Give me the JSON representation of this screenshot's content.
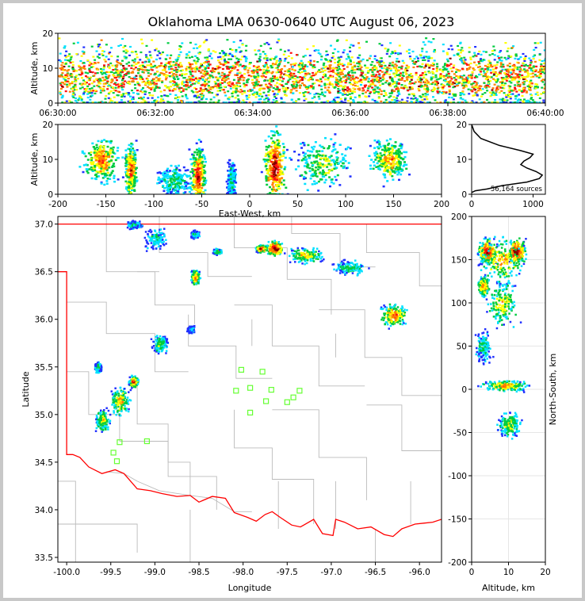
{
  "title": "Oklahoma LMA 0630-0640 UTC August 06, 2023",
  "colors": {
    "density": [
      "#2030ff",
      "#00e0ff",
      "#00cc40",
      "#ffff00",
      "#ff8000",
      "#ff1010",
      "#800000"
    ],
    "state_border": "#ff0000",
    "county_lines": "#bbbbbb",
    "stations": "#66ff33",
    "profile": "#000000"
  },
  "chart_data": [
    {
      "name": "time-height",
      "type": "heatmap",
      "xlabel": "",
      "ylabel": "Altitude, km",
      "xticks": [
        "06:30:00",
        "06:32:00",
        "06:34:00",
        "06:36:00",
        "06:38:00",
        "06:40:00"
      ],
      "xlim_minutes": [
        0,
        10
      ],
      "ylim": [
        0,
        20
      ],
      "yticks": [
        0,
        10,
        20
      ],
      "note": "lightning sources dense between 2 and 14 km altitude throughout the 10 minute window"
    },
    {
      "name": "east-west-height",
      "type": "heatmap",
      "xlabel": "East-West, km",
      "ylabel": "Altitude, km",
      "xlim": [
        -200,
        200
      ],
      "xticks": [
        -200,
        -150,
        -100,
        -50,
        0,
        50,
        100,
        150,
        200
      ],
      "ylim": [
        0,
        20
      ],
      "yticks": [
        0,
        10,
        20
      ],
      "clusters": [
        {
          "x": -155,
          "y": 10,
          "w": 25,
          "h": 8,
          "strength": 0.8
        },
        {
          "x": -125,
          "y": 7,
          "w": 8,
          "h": 10,
          "strength": 0.85
        },
        {
          "x": -80,
          "y": 4,
          "w": 25,
          "h": 6,
          "strength": 0.5
        },
        {
          "x": -55,
          "y": 5,
          "w": 10,
          "h": 12,
          "strength": 0.9
        },
        {
          "x": -20,
          "y": 4,
          "w": 6,
          "h": 8,
          "strength": 0.45
        },
        {
          "x": 25,
          "y": 8,
          "w": 15,
          "h": 14,
          "strength": 0.95
        },
        {
          "x": 75,
          "y": 9,
          "w": 40,
          "h": 10,
          "strength": 0.6
        },
        {
          "x": 145,
          "y": 10,
          "w": 25,
          "h": 8,
          "strength": 0.75
        }
      ]
    },
    {
      "name": "altitude-histogram",
      "type": "line",
      "xlim": [
        0,
        1200
      ],
      "xticks": [
        0,
        1000
      ],
      "ylim": [
        0,
        20
      ],
      "yticks": [
        0,
        10,
        20
      ],
      "annotation": "56,164 sources",
      "series": [
        {
          "x": [
            0,
            60,
            250,
            500,
            900,
            1100,
            1150,
            1050,
            900,
            800,
            850,
            950,
            1000,
            800,
            450,
            150,
            40,
            0
          ],
          "y": [
            0.5,
            1,
            1.5,
            2.5,
            3.5,
            4.5,
            5.5,
            6.5,
            7.5,
            8.5,
            9.5,
            10.5,
            11.5,
            12.5,
            14,
            16,
            18,
            20
          ]
        }
      ]
    },
    {
      "name": "plan-view",
      "type": "heatmap",
      "xlabel": "Longitude",
      "ylabel": "Latitude",
      "xlim": [
        -100.1,
        -95.75
      ],
      "xticks": [
        -100.0,
        -99.5,
        -99.0,
        -98.5,
        -98.0,
        -97.5,
        -97.0,
        -96.5,
        -96.0
      ],
      "xtick_labels": [
        "-100.0",
        "-99.5",
        "-99.0",
        "-98.5",
        "-98.0",
        "-97.5",
        "-97.0",
        "-96.5",
        "-96.0"
      ],
      "ylim": [
        33.45,
        37.08
      ],
      "yticks": [
        33.5,
        34.0,
        34.5,
        35.0,
        35.5,
        36.0,
        36.5,
        37.0
      ],
      "ytick_labels": [
        "33.5",
        "34.0",
        "34.5",
        "35.0",
        "35.5",
        "36.0",
        "36.5",
        "37.0"
      ],
      "clusters": [
        {
          "lon": -97.65,
          "lat": 36.75,
          "w": 0.12,
          "h": 0.1,
          "strength": 1.0
        },
        {
          "lon": -97.8,
          "lat": 36.75,
          "w": 0.08,
          "h": 0.05,
          "strength": 0.95
        },
        {
          "lon": -97.3,
          "lat": 36.68,
          "w": 0.25,
          "h": 0.1,
          "strength": 0.7
        },
        {
          "lon": -96.8,
          "lat": 36.55,
          "w": 0.25,
          "h": 0.1,
          "strength": 0.5
        },
        {
          "lon": -96.3,
          "lat": 36.05,
          "w": 0.2,
          "h": 0.16,
          "strength": 0.8
        },
        {
          "lon": -98.55,
          "lat": 36.45,
          "w": 0.06,
          "h": 0.1,
          "strength": 0.85
        },
        {
          "lon": -98.3,
          "lat": 36.72,
          "w": 0.06,
          "h": 0.04,
          "strength": 0.6
        },
        {
          "lon": -98.55,
          "lat": 36.9,
          "w": 0.06,
          "h": 0.05,
          "strength": 0.5
        },
        {
          "lon": -99.0,
          "lat": 36.85,
          "w": 0.15,
          "h": 0.15,
          "strength": 0.45
        },
        {
          "lon": -99.25,
          "lat": 37.0,
          "w": 0.12,
          "h": 0.05,
          "strength": 0.45
        },
        {
          "lon": -99.25,
          "lat": 35.35,
          "w": 0.07,
          "h": 0.08,
          "strength": 0.85
        },
        {
          "lon": -99.4,
          "lat": 35.15,
          "w": 0.14,
          "h": 0.2,
          "strength": 0.7
        },
        {
          "lon": -99.6,
          "lat": 34.95,
          "w": 0.1,
          "h": 0.15,
          "strength": 0.65
        },
        {
          "lon": -99.65,
          "lat": 35.5,
          "w": 0.05,
          "h": 0.07,
          "strength": 0.5
        },
        {
          "lon": -98.95,
          "lat": 35.75,
          "w": 0.12,
          "h": 0.12,
          "strength": 0.55
        },
        {
          "lon": -98.6,
          "lat": 35.9,
          "w": 0.06,
          "h": 0.05,
          "strength": 0.35
        }
      ],
      "stations": [
        {
          "lon": -98.02,
          "lat": 35.47
        },
        {
          "lon": -97.78,
          "lat": 35.45
        },
        {
          "lon": -97.92,
          "lat": 35.28
        },
        {
          "lon": -98.08,
          "lat": 35.25
        },
        {
          "lon": -97.68,
          "lat": 35.26
        },
        {
          "lon": -97.36,
          "lat": 35.25
        },
        {
          "lon": -97.74,
          "lat": 35.14
        },
        {
          "lon": -97.5,
          "lat": 35.13
        },
        {
          "lon": -97.43,
          "lat": 35.18
        },
        {
          "lon": -97.92,
          "lat": 35.02
        },
        {
          "lon": -99.4,
          "lat": 34.71
        },
        {
          "lon": -99.09,
          "lat": 34.72
        },
        {
          "lon": -99.47,
          "lat": 34.6
        },
        {
          "lon": -99.43,
          "lat": 34.51
        }
      ]
    },
    {
      "name": "altitude-north-south",
      "type": "heatmap",
      "xlabel": "Altitude, km",
      "ylabel": "North-South, km",
      "xlim": [
        0,
        20
      ],
      "xticks": [
        0,
        10,
        20
      ],
      "ylim": [
        -200,
        200
      ],
      "yticks": [
        -200,
        -150,
        -100,
        -50,
        0,
        50,
        100,
        150,
        200
      ],
      "grid": true,
      "clusters": [
        {
          "x": 4,
          "y": 160,
          "w": 3,
          "h": 18,
          "strength": 0.95
        },
        {
          "x": 12,
          "y": 160,
          "w": 3,
          "h": 18,
          "strength": 1.0
        },
        {
          "x": 8,
          "y": 150,
          "w": 8,
          "h": 35,
          "strength": 0.7
        },
        {
          "x": 8,
          "y": 100,
          "w": 6,
          "h": 35,
          "strength": 0.65
        },
        {
          "x": 3,
          "y": 120,
          "w": 2,
          "h": 15,
          "strength": 0.8
        },
        {
          "x": 3,
          "y": 50,
          "w": 3,
          "h": 25,
          "strength": 0.45
        },
        {
          "x": 9,
          "y": 5,
          "w": 8,
          "h": 8,
          "strength": 0.75
        },
        {
          "x": 10,
          "y": -40,
          "w": 4,
          "h": 20,
          "strength": 0.6
        }
      ]
    }
  ]
}
